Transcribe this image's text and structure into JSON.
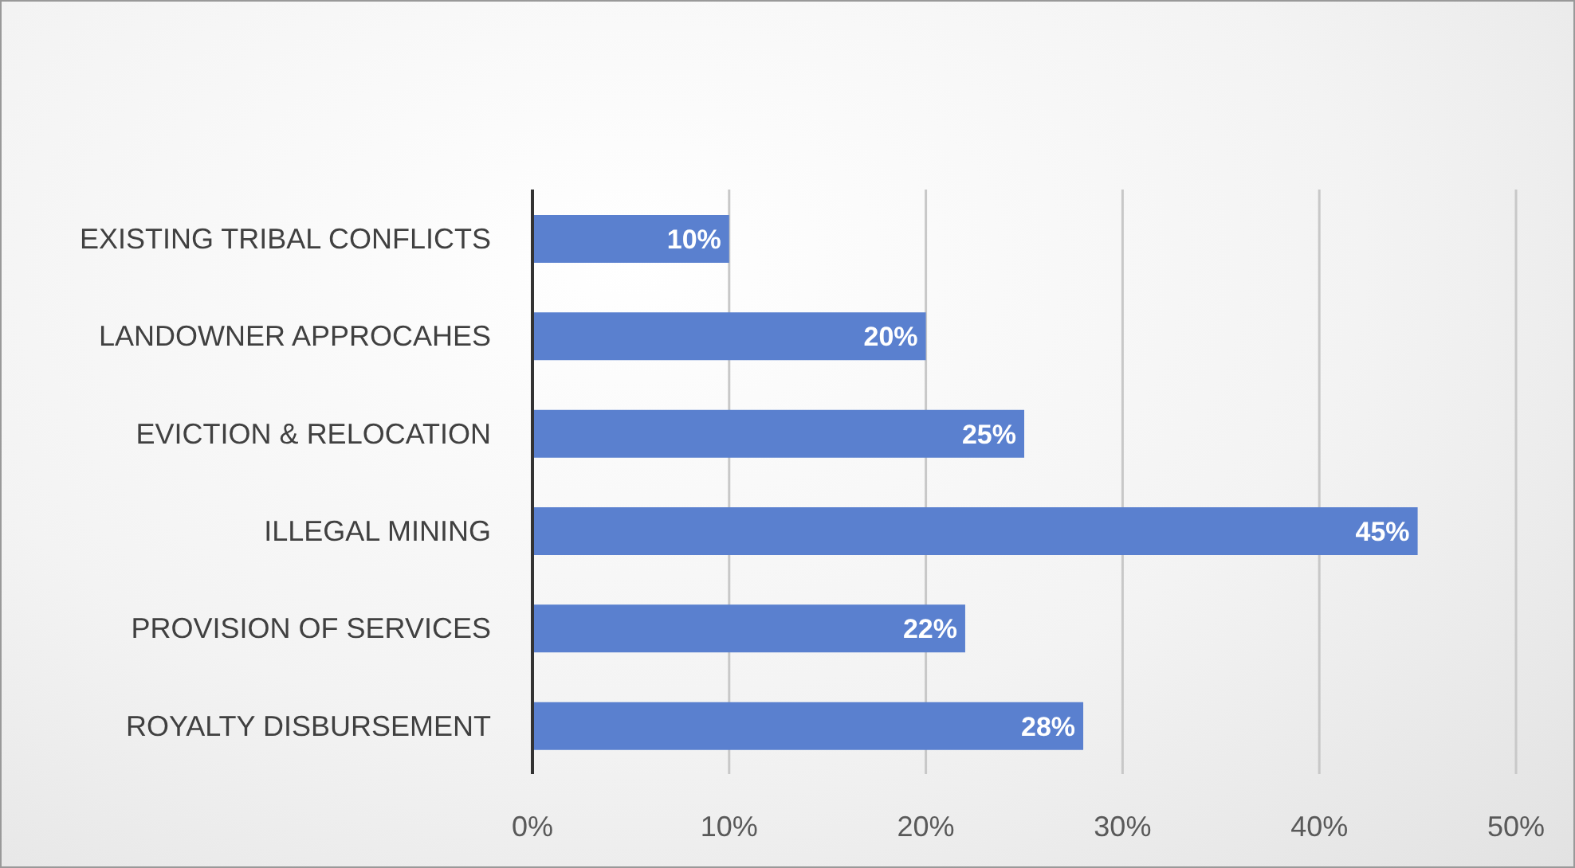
{
  "chart_data": {
    "type": "bar",
    "orientation": "horizontal",
    "categories": [
      "EXISTING TRIBAL CONFLICTS",
      "LANDOWNER APPROCAHES",
      "EVICTION & RELOCATION",
      "ILLEGAL MINING",
      "PROVISION OF SERVICES",
      "ROYALTY DISBURSEMENT"
    ],
    "values": [
      10,
      20,
      25,
      45,
      22,
      28
    ],
    "value_labels": [
      "10%",
      "20%",
      "25%",
      "45%",
      "22%",
      "28%"
    ],
    "color": "#5a80cf",
    "xlim": [
      0,
      50
    ],
    "xticks": [
      {
        "value": 0,
        "label": "0%"
      },
      {
        "value": 10,
        "label": "10%"
      },
      {
        "value": 20,
        "label": "20%"
      },
      {
        "value": 30,
        "label": "30%"
      },
      {
        "value": 40,
        "label": "40%"
      },
      {
        "value": 50,
        "label": "50%"
      }
    ],
    "grid": "x",
    "legend": false
  }
}
